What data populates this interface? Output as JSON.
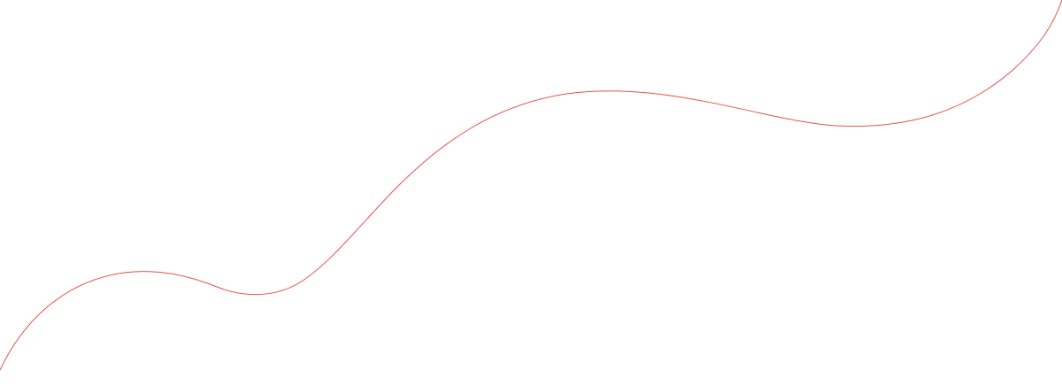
{
  "decoration": {
    "wave_color": "#e8524a",
    "background_color": "#ffffff"
  }
}
